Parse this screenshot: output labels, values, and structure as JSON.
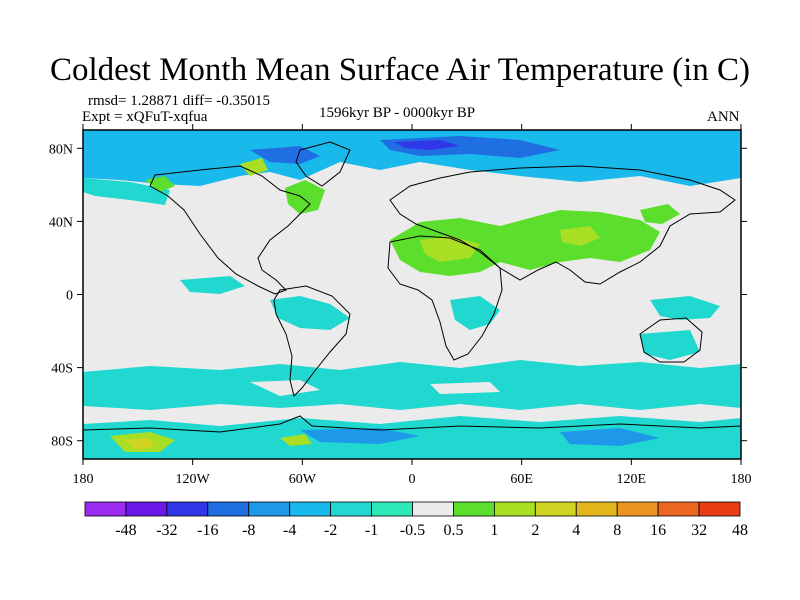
{
  "title": "Coldest Month Mean Surface Air Temperature (in C)",
  "stats_label": "rmsd= 1.28871 diff= -0.35015",
  "experiment_label": "Expt = xQFuT-xqfua",
  "period_label": "1596kyr BP - 0000kyr BP",
  "season_label": "ANN",
  "axes": {
    "lat_ticks": [
      {
        "value": 80,
        "label": "80N"
      },
      {
        "value": 40,
        "label": "40N"
      },
      {
        "value": 0,
        "label": "0"
      },
      {
        "value": -40,
        "label": "40S"
      },
      {
        "value": -80,
        "label": "80S"
      }
    ],
    "lon_ticks": [
      {
        "value": -180,
        "label": "180"
      },
      {
        "value": -120,
        "label": "120W"
      },
      {
        "value": -60,
        "label": "60W"
      },
      {
        "value": 0,
        "label": "0"
      },
      {
        "value": 60,
        "label": "60E"
      },
      {
        "value": 120,
        "label": "120E"
      },
      {
        "value": 180,
        "label": "180"
      }
    ]
  },
  "colorbar": {
    "colors": [
      "#9b2cf0",
      "#6a19e6",
      "#2f37e8",
      "#1f6fe2",
      "#1e98e8",
      "#1ab9ec",
      "#20d8cf",
      "#2fe8b8",
      "#ebebeb",
      "#5cde2c",
      "#a8de23",
      "#cfd322",
      "#e3b61e",
      "#ec9420",
      "#ec6622",
      "#ea3b14"
    ],
    "labels": [
      "-48",
      "-32",
      "-16",
      "-8",
      "-4",
      "-2",
      "-1",
      "-0.5",
      "0.5",
      "1",
      "2",
      "4",
      "8",
      "16",
      "32",
      "48"
    ]
  }
}
